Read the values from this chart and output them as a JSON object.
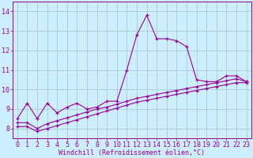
{
  "background_color": "#cceeff",
  "grid_color": "#aacccc",
  "line_color": "#990099",
  "marker": "+",
  "xlabel": "Windchill (Refroidissement éolien,°C)",
  "xlabel_fontsize": 6.0,
  "xlim": [
    -0.5,
    23.5
  ],
  "ylim": [
    7.5,
    14.5
  ],
  "xticks": [
    0,
    1,
    2,
    3,
    4,
    5,
    6,
    7,
    8,
    9,
    10,
    11,
    12,
    13,
    14,
    15,
    16,
    17,
    18,
    19,
    20,
    21,
    22,
    23
  ],
  "yticks": [
    8,
    9,
    10,
    11,
    12,
    13,
    14
  ],
  "tick_fontsize": 6.0,
  "series1_x": [
    0,
    1,
    2,
    3,
    4,
    5,
    6,
    7,
    8,
    9,
    10,
    11,
    12,
    13,
    14,
    15,
    16,
    17,
    18,
    19,
    20,
    21,
    22,
    23
  ],
  "series1_y": [
    8.5,
    9.3,
    8.5,
    9.3,
    8.8,
    9.1,
    9.3,
    9.0,
    9.1,
    9.4,
    9.4,
    11.0,
    12.8,
    13.8,
    12.6,
    12.6,
    12.5,
    12.2,
    10.5,
    10.4,
    10.4,
    10.7,
    10.7,
    10.4
  ],
  "series2_x": [
    0,
    1,
    2,
    3,
    4,
    5,
    6,
    7,
    8,
    9,
    10,
    11,
    12,
    13,
    14,
    15,
    16,
    17,
    18,
    19,
    20,
    21,
    22,
    23
  ],
  "series2_y": [
    8.3,
    8.3,
    8.0,
    8.25,
    8.4,
    8.55,
    8.7,
    8.85,
    9.0,
    9.1,
    9.25,
    9.4,
    9.55,
    9.65,
    9.75,
    9.85,
    9.95,
    10.05,
    10.15,
    10.25,
    10.35,
    10.45,
    10.55,
    10.4
  ],
  "series3_x": [
    0,
    1,
    2,
    3,
    4,
    5,
    6,
    7,
    8,
    9,
    10,
    11,
    12,
    13,
    14,
    15,
    16,
    17,
    18,
    19,
    20,
    21,
    22,
    23
  ],
  "series3_y": [
    8.1,
    8.1,
    7.85,
    8.0,
    8.15,
    8.3,
    8.45,
    8.6,
    8.75,
    8.9,
    9.05,
    9.2,
    9.35,
    9.45,
    9.55,
    9.65,
    9.75,
    9.85,
    9.95,
    10.05,
    10.15,
    10.25,
    10.35,
    10.35
  ]
}
